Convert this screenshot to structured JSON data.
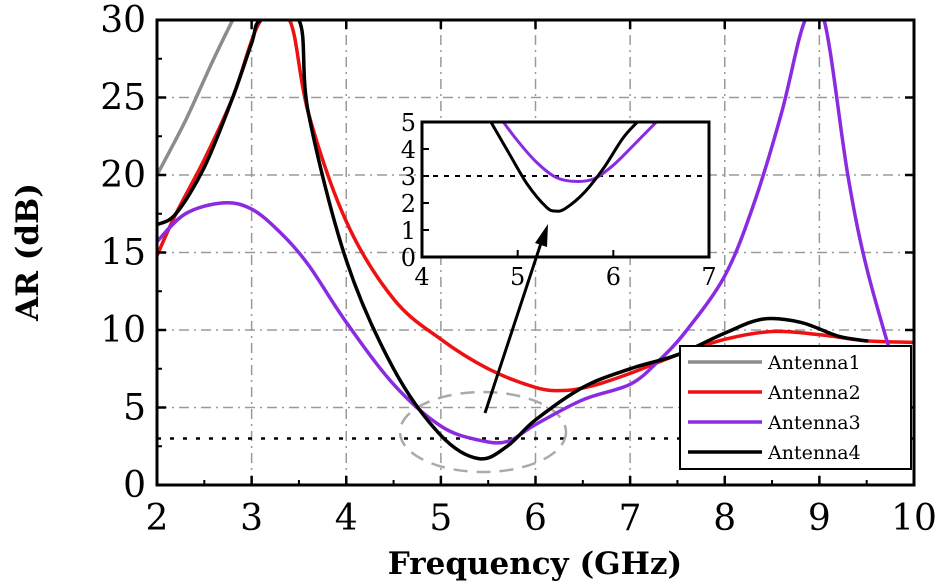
{
  "chart_data": {
    "type": "line",
    "title": "",
    "xlabel": "Frequency (GHz)",
    "ylabel": "AR (dB)",
    "xlim": [
      2,
      10
    ],
    "ylim": [
      0,
      30
    ],
    "xticks": [
      2,
      3,
      4,
      5,
      6,
      7,
      8,
      9,
      10
    ],
    "yticks": [
      0,
      5,
      10,
      15,
      20,
      25,
      30
    ],
    "grid": true,
    "legend_position": "bottom-right",
    "threshold": 3,
    "series": [
      {
        "name": "Antenna1",
        "color": "#8c8c8c",
        "x": [
          2.0,
          2.3,
          2.6,
          2.8
        ],
        "y": [
          20.0,
          23.5,
          27.5,
          30.0
        ]
      },
      {
        "name": "Antenna2",
        "color": "#ee1111",
        "x": [
          2.0,
          2.2,
          2.5,
          2.8,
          3.1,
          3.4,
          3.6,
          4.0,
          4.5,
          5.0,
          5.5,
          6.0,
          6.3,
          6.6,
          7.0,
          7.5,
          8.0,
          8.5,
          9.0,
          9.5,
          10.0
        ],
        "y": [
          14.8,
          17.5,
          21.0,
          25.0,
          30.0,
          30.0,
          24.0,
          17.0,
          12.0,
          9.4,
          7.5,
          6.3,
          6.1,
          6.4,
          7.2,
          8.4,
          9.4,
          9.9,
          9.7,
          9.3,
          9.2
        ]
      },
      {
        "name": "Antenna3",
        "color": "#8a2be2",
        "x": [
          2.0,
          2.3,
          2.7,
          3.0,
          3.3,
          3.6,
          4.0,
          4.5,
          5.0,
          5.4,
          5.7,
          6.0,
          6.5,
          7.0,
          7.3,
          7.6,
          8.0,
          8.3,
          8.6,
          8.85,
          9.05,
          9.3,
          9.5,
          9.8
        ],
        "y": [
          15.7,
          17.5,
          18.2,
          17.8,
          16.3,
          14.2,
          10.5,
          6.5,
          3.8,
          2.9,
          2.8,
          3.9,
          5.5,
          6.5,
          8.0,
          10.0,
          13.5,
          18.0,
          24.0,
          30.0,
          30.0,
          20.0,
          14.0,
          7.5
        ]
      },
      {
        "name": "Antenna4",
        "color": "#000000",
        "x": [
          2.0,
          2.2,
          2.5,
          2.8,
          3.0,
          3.1,
          3.5,
          3.6,
          4.0,
          4.5,
          5.0,
          5.4,
          5.7,
          6.0,
          6.5,
          7.0,
          7.5,
          8.0,
          8.4,
          8.8,
          9.2,
          9.5
        ],
        "y": [
          16.8,
          17.5,
          20.5,
          25.0,
          28.5,
          30.0,
          30.0,
          24.0,
          14.5,
          7.5,
          3.2,
          1.7,
          2.5,
          4.2,
          6.3,
          7.5,
          8.4,
          9.8,
          10.7,
          10.5,
          9.6,
          9.3
        ]
      }
    ],
    "inset": {
      "xlim": [
        4,
        7
      ],
      "ylim": [
        0,
        5
      ],
      "xticks": [
        4,
        5,
        6,
        7
      ],
      "yticks": [
        0,
        1,
        2,
        3,
        4,
        5
      ],
      "threshold": 3,
      "series": [
        {
          "name": "Antenna3",
          "color": "#8a2be2",
          "x": [
            4.85,
            5.0,
            5.2,
            5.4,
            5.6,
            5.8,
            6.0,
            6.2,
            6.45
          ],
          "y": [
            5.0,
            4.3,
            3.5,
            2.95,
            2.8,
            2.9,
            3.4,
            4.1,
            5.0
          ]
        },
        {
          "name": "Antenna4",
          "color": "#000000",
          "x": [
            4.72,
            4.9,
            5.1,
            5.3,
            5.4,
            5.5,
            5.7,
            5.9,
            6.1,
            6.25
          ],
          "y": [
            5.0,
            3.9,
            2.7,
            1.85,
            1.7,
            1.8,
            2.4,
            3.3,
            4.4,
            5.0
          ]
        }
      ]
    }
  }
}
